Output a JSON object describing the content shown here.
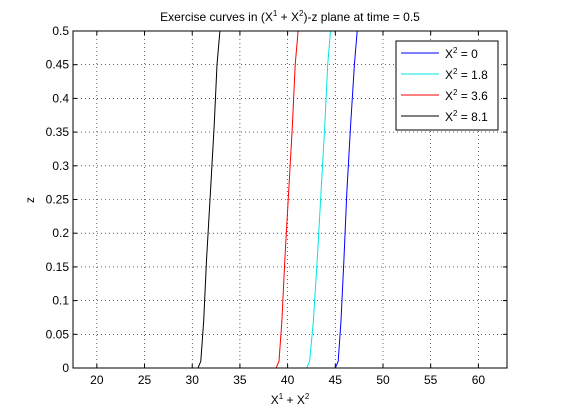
{
  "chart_data": {
    "type": "line",
    "title": {
      "prefix": "Exercise curves in (X",
      "sup1": "1",
      "mid": " + X",
      "sup2": "2",
      "suffix": ")-z plane at time = 0.5"
    },
    "xlabel": {
      "a": "X",
      "a_sup": "1",
      "plus": " + X",
      "b_sup": "2"
    },
    "ylabel": "z",
    "xlim": [
      17.5,
      63
    ],
    "ylim": [
      0,
      0.5
    ],
    "xticks": [
      20,
      25,
      30,
      35,
      40,
      45,
      50,
      55,
      60
    ],
    "yticks": [
      0,
      0.05,
      0.1,
      0.15,
      0.2,
      0.25,
      0.3,
      0.35,
      0.4,
      0.45,
      0.5
    ],
    "ytick_labels": [
      "0",
      "0.05",
      "0.1",
      "0.15",
      "0.2",
      "0.25",
      "0.3",
      "0.35",
      "0.4",
      "0.45",
      "0.5"
    ],
    "grid": true,
    "legend_position": "top-right",
    "series": [
      {
        "name_prefix": "X",
        "name_sup": "2",
        "name_value": " = 0",
        "color": "#0000ff",
        "x": [
          17.5,
          45.0,
          45.3,
          45.6,
          45.9,
          46.2,
          46.6,
          47.0,
          47.3
        ],
        "y": [
          0,
          0,
          0.01,
          0.07,
          0.16,
          0.26,
          0.36,
          0.45,
          0.5
        ]
      },
      {
        "name_prefix": "X",
        "name_sup": "2",
        "name_value": " = 1.8",
        "color": "#00e5e5",
        "x": [
          17.5,
          42.0,
          42.3,
          42.7,
          43.1,
          43.5,
          43.9,
          44.2,
          44.5
        ],
        "y": [
          0,
          0,
          0.01,
          0.07,
          0.16,
          0.26,
          0.36,
          0.45,
          0.5
        ]
      },
      {
        "name_prefix": "X",
        "name_sup": "2",
        "name_value": " = 3.6",
        "color": "#ff0000",
        "x": [
          17.5,
          38.8,
          39.1,
          39.4,
          39.7,
          40.1,
          40.5,
          40.8,
          41.1
        ],
        "y": [
          0,
          0,
          0.01,
          0.07,
          0.16,
          0.26,
          0.36,
          0.45,
          0.5
        ]
      },
      {
        "name_prefix": "X",
        "name_sup": "2",
        "name_value": " = 8.1",
        "color": "#000000",
        "x": [
          17.5,
          30.6,
          30.9,
          31.2,
          31.5,
          31.9,
          32.3,
          32.6,
          32.9
        ],
        "y": [
          0,
          0,
          0.01,
          0.07,
          0.16,
          0.26,
          0.36,
          0.45,
          0.5
        ]
      }
    ]
  }
}
